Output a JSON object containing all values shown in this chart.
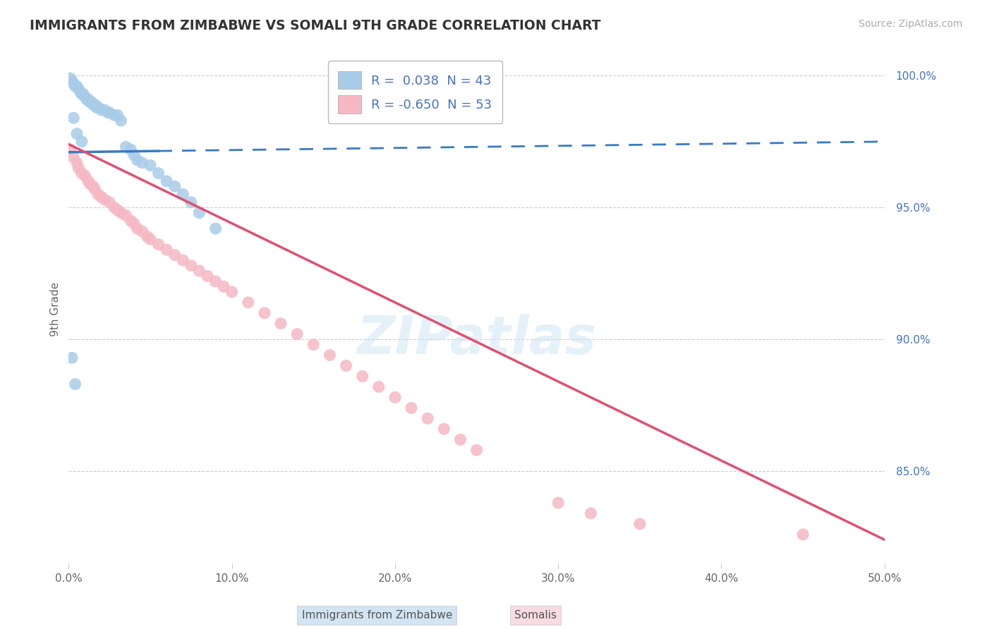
{
  "title": "IMMIGRANTS FROM ZIMBABWE VS SOMALI 9TH GRADE CORRELATION CHART",
  "source": "Source: ZipAtlas.com",
  "ylabel": "9th Grade",
  "legend_R1": "0.038",
  "legend_N1": "43",
  "legend_R2": "-0.650",
  "legend_N2": "53",
  "blue_fill": "#a8cce8",
  "pink_fill": "#f5b8c4",
  "blue_line": "#3a7abf",
  "pink_line": "#e05070",
  "text_color": "#4472c4",
  "grid_color": "#cccccc",
  "watermark": "ZIPatlas",
  "x_min": 0.0,
  "x_max": 0.5,
  "y_min": 0.815,
  "y_max": 1.008,
  "yticks": [
    0.85,
    0.9,
    0.95,
    1.0
  ],
  "ytick_labels": [
    "85.0%",
    "90.0%",
    "95.0%",
    "100.0%"
  ],
  "xticks": [
    0.0,
    0.1,
    0.2,
    0.3,
    0.4,
    0.5
  ],
  "xtick_labels": [
    "0.0%",
    "10.0%",
    "20.0%",
    "30.0%",
    "40.0%",
    "50.0%"
  ],
  "blue_x": [
    0.001,
    0.002,
    0.003,
    0.004,
    0.005,
    0.006,
    0.007,
    0.008,
    0.009,
    0.01,
    0.011,
    0.012,
    0.013,
    0.014,
    0.015,
    0.016,
    0.017,
    0.018,
    0.02,
    0.022,
    0.024,
    0.025,
    0.028,
    0.03,
    0.032,
    0.035,
    0.038,
    0.04,
    0.042,
    0.045,
    0.05,
    0.055,
    0.06,
    0.065,
    0.07,
    0.075,
    0.08,
    0.09,
    0.003,
    0.005,
    0.008,
    0.002,
    0.004
  ],
  "blue_y": [
    0.999,
    0.998,
    0.997,
    0.996,
    0.996,
    0.995,
    0.994,
    0.993,
    0.993,
    0.992,
    0.991,
    0.991,
    0.99,
    0.99,
    0.989,
    0.989,
    0.988,
    0.988,
    0.987,
    0.987,
    0.986,
    0.986,
    0.985,
    0.985,
    0.983,
    0.973,
    0.972,
    0.97,
    0.968,
    0.967,
    0.966,
    0.963,
    0.96,
    0.958,
    0.955,
    0.952,
    0.948,
    0.942,
    0.984,
    0.978,
    0.975,
    0.893,
    0.883
  ],
  "pink_x": [
    0.001,
    0.003,
    0.005,
    0.006,
    0.008,
    0.01,
    0.012,
    0.013,
    0.015,
    0.016,
    0.018,
    0.02,
    0.022,
    0.025,
    0.028,
    0.03,
    0.032,
    0.035,
    0.038,
    0.04,
    0.042,
    0.045,
    0.048,
    0.05,
    0.055,
    0.06,
    0.065,
    0.07,
    0.075,
    0.08,
    0.085,
    0.09,
    0.095,
    0.1,
    0.11,
    0.12,
    0.13,
    0.14,
    0.15,
    0.16,
    0.17,
    0.18,
    0.19,
    0.2,
    0.21,
    0.22,
    0.23,
    0.24,
    0.25,
    0.3,
    0.32,
    0.35,
    0.45
  ],
  "pink_y": [
    0.972,
    0.969,
    0.967,
    0.965,
    0.963,
    0.962,
    0.96,
    0.959,
    0.958,
    0.957,
    0.955,
    0.954,
    0.953,
    0.952,
    0.95,
    0.949,
    0.948,
    0.947,
    0.945,
    0.944,
    0.942,
    0.941,
    0.939,
    0.938,
    0.936,
    0.934,
    0.932,
    0.93,
    0.928,
    0.926,
    0.924,
    0.922,
    0.92,
    0.918,
    0.914,
    0.91,
    0.906,
    0.902,
    0.898,
    0.894,
    0.89,
    0.886,
    0.882,
    0.878,
    0.874,
    0.87,
    0.866,
    0.862,
    0.858,
    0.838,
    0.834,
    0.83,
    0.826
  ],
  "blue_line_x0": 0.0,
  "blue_line_x_solid_end": 0.055,
  "blue_line_x1": 0.5,
  "blue_line_y0": 0.971,
  "blue_line_y1": 0.975,
  "pink_line_x0": 0.0,
  "pink_line_x1": 0.5,
  "pink_line_y0": 0.974,
  "pink_line_y1": 0.824
}
